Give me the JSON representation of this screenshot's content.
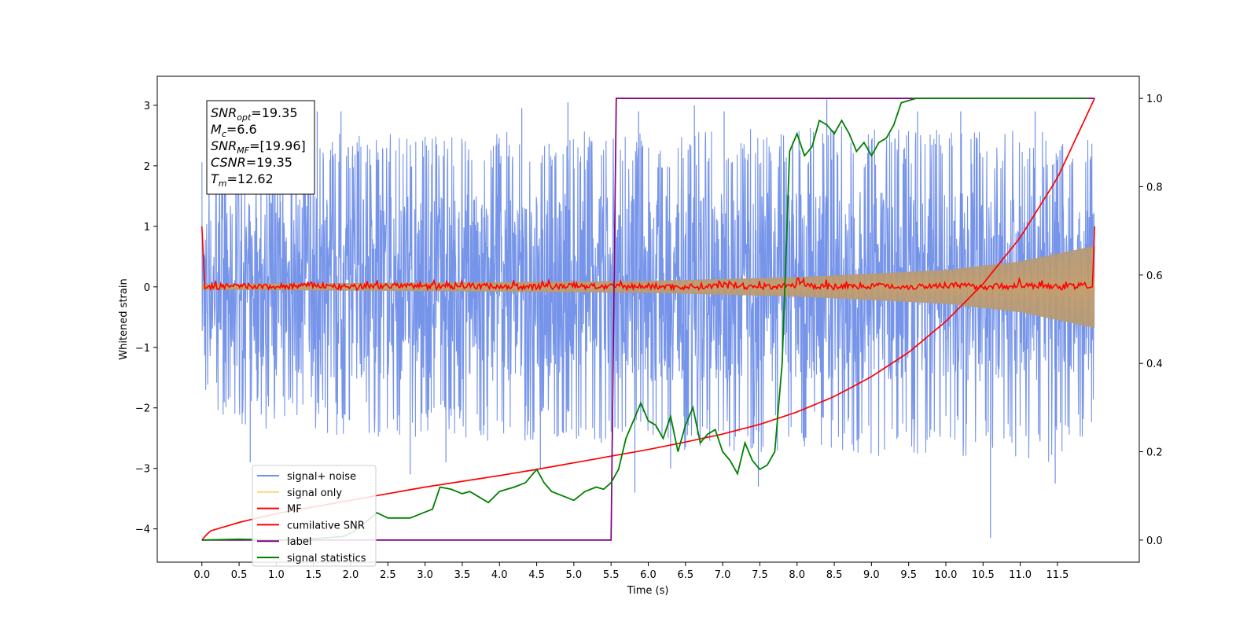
{
  "chart_data": {
    "type": "line",
    "xlabel": "Time (s)",
    "ylabel": "Whitened strain",
    "xlim": [
      -0.6,
      12.6
    ],
    "ylim": [
      -4.55,
      3.48
    ],
    "ylim_right": [
      -0.05,
      1.05
    ],
    "x_ticks": [
      0.0,
      0.5,
      1.0,
      1.5,
      2.0,
      2.5,
      3.0,
      3.5,
      4.0,
      4.5,
      5.0,
      5.5,
      6.0,
      6.5,
      7.0,
      7.5,
      8.0,
      8.5,
      9.0,
      9.5,
      10.0,
      10.5,
      11.0,
      11.5
    ],
    "x_tick_labels": [
      "0.0",
      "0.5",
      "1.0",
      "1.5",
      "2.0",
      "2.5",
      "3.0",
      "3.5",
      "4.0",
      "4.5",
      "5.0",
      "5.5",
      "6.0",
      "6.5",
      "7.0",
      "7.5",
      "8.0",
      "8.5",
      "9.0",
      "9.5",
      "10.0",
      "10.5",
      "11.0",
      "11.5"
    ],
    "y_ticks": [
      3,
      2,
      1,
      0,
      -1,
      -2,
      -3,
      -4
    ],
    "y_tick_labels": [
      "3",
      "2",
      "1",
      "0",
      "−1",
      "−2",
      "−3",
      "−4"
    ],
    "y_right_ticks": [
      1.0,
      0.8,
      0.6,
      0.4,
      0.2,
      0.0
    ],
    "y_right_tick_labels": [
      "1.0",
      "0.8",
      "0.6",
      "0.4",
      "0.2",
      "0.0"
    ],
    "series": [
      {
        "name": "signal+ noise",
        "color": "#6f8ee8",
        "axis": "left",
        "x_range": [
          0.0,
          12.0
        ],
        "envelope_high": [
          [
            0.0,
            2.1
          ],
          [
            0.5,
            2.3
          ],
          [
            1.0,
            2.5
          ],
          [
            1.5,
            2.5
          ],
          [
            2.0,
            2.6
          ],
          [
            2.5,
            2.6
          ],
          [
            3.0,
            2.5
          ],
          [
            3.5,
            2.6
          ],
          [
            4.0,
            2.6
          ],
          [
            4.5,
            2.6
          ],
          [
            5.0,
            2.6
          ],
          [
            5.5,
            2.5
          ],
          [
            6.0,
            2.6
          ],
          [
            6.5,
            2.6
          ],
          [
            7.0,
            2.7
          ],
          [
            7.5,
            2.6
          ],
          [
            8.0,
            2.6
          ],
          [
            8.5,
            2.7
          ],
          [
            9.0,
            2.6
          ],
          [
            9.5,
            2.6
          ],
          [
            10.0,
            2.6
          ],
          [
            10.5,
            2.6
          ],
          [
            11.0,
            2.6
          ],
          [
            11.5,
            2.6
          ],
          [
            12.0,
            2.4
          ]
        ],
        "envelope_low": [
          [
            0.0,
            -1.9
          ],
          [
            0.5,
            -2.3
          ],
          [
            1.0,
            -2.4
          ],
          [
            1.5,
            -2.4
          ],
          [
            2.0,
            -2.5
          ],
          [
            2.5,
            -2.5
          ],
          [
            3.0,
            -2.5
          ],
          [
            3.5,
            -2.5
          ],
          [
            4.0,
            -2.6
          ],
          [
            4.5,
            -2.6
          ],
          [
            5.0,
            -2.6
          ],
          [
            5.5,
            -2.6
          ],
          [
            6.0,
            -2.7
          ],
          [
            6.5,
            -2.7
          ],
          [
            7.0,
            -2.7
          ],
          [
            7.5,
            -2.8
          ],
          [
            8.0,
            -2.7
          ],
          [
            8.5,
            -2.7
          ],
          [
            9.0,
            -2.8
          ],
          [
            9.5,
            -2.8
          ],
          [
            10.0,
            -2.8
          ],
          [
            10.5,
            -2.8
          ],
          [
            11.0,
            -2.9
          ],
          [
            11.5,
            -2.9
          ],
          [
            12.0,
            -2.3
          ]
        ],
        "extreme_points": [
          [
            0.65,
            -2.9
          ],
          [
            2.8,
            -3.1
          ],
          [
            3.28,
            -2.9
          ],
          [
            4.55,
            -3.0
          ],
          [
            5.52,
            -2.55
          ],
          [
            5.82,
            -3.4
          ],
          [
            6.3,
            -3.0
          ],
          [
            7.48,
            -3.3
          ],
          [
            8.4,
            3.1
          ],
          [
            10.6,
            -4.15
          ],
          [
            11.47,
            -3.25
          ],
          [
            1.05,
            2.95
          ],
          [
            1.55,
            2.9
          ],
          [
            1.87,
            2.9
          ],
          [
            4.3,
            2.95
          ],
          [
            4.92,
            3.05
          ],
          [
            5.87,
            2.9
          ],
          [
            6.62,
            3.0
          ],
          [
            7.02,
            2.9
          ],
          [
            9.62,
            2.9
          ],
          [
            10.2,
            2.9
          ],
          [
            11.2,
            2.9
          ]
        ]
      },
      {
        "name": "signal only",
        "color": "#ffd27f",
        "axis": "left",
        "amplitude": [
          [
            0.0,
            0.05
          ],
          [
            3.0,
            0.07
          ],
          [
            6.0,
            0.1
          ],
          [
            8.0,
            0.16
          ],
          [
            10.0,
            0.28
          ],
          [
            11.0,
            0.42
          ],
          [
            11.7,
            0.6
          ],
          [
            12.0,
            0.68
          ]
        ]
      },
      {
        "name": "MF",
        "color": "#ff0000",
        "axis": "left",
        "x": [
          0.0,
          0.05,
          0.1,
          0.5,
          1.0,
          1.5,
          2.0,
          2.5,
          3.0,
          3.5,
          4.0,
          4.5,
          5.0,
          5.5,
          6.0,
          6.5,
          7.0,
          7.5,
          8.0,
          8.5,
          9.0,
          9.5,
          10.0,
          10.5,
          11.0,
          11.5,
          11.9,
          11.97,
          12.0
        ],
        "y": [
          1.0,
          -0.02,
          0.0,
          0.01,
          0.0,
          0.03,
          -0.01,
          0.02,
          0.0,
          0.02,
          0.01,
          0.0,
          0.02,
          0.0,
          0.01,
          0.0,
          0.02,
          0.0,
          0.03,
          0.0,
          0.02,
          0.0,
          0.03,
          0.0,
          0.02,
          0.0,
          0.02,
          0.0,
          1.0
        ]
      },
      {
        "name": "cumilative SNR",
        "color": "#ff0000",
        "axis": "right",
        "x": [
          0.0,
          0.1,
          0.5,
          1.0,
          1.5,
          2.0,
          2.5,
          3.0,
          3.5,
          4.0,
          4.5,
          5.0,
          5.5,
          6.0,
          6.5,
          7.0,
          7.5,
          8.0,
          8.5,
          9.0,
          9.5,
          10.0,
          10.5,
          11.0,
          11.5,
          12.0
        ],
        "y": [
          0.0,
          0.02,
          0.04,
          0.06,
          0.075,
          0.09,
          0.105,
          0.12,
          0.133,
          0.146,
          0.16,
          0.175,
          0.19,
          0.205,
          0.222,
          0.24,
          0.262,
          0.29,
          0.325,
          0.37,
          0.425,
          0.495,
          0.58,
          0.685,
          0.82,
          1.0
        ]
      },
      {
        "name": "label",
        "color": "#800080",
        "axis": "right",
        "x": [
          0.0,
          5.5,
          5.57,
          12.0
        ],
        "y": [
          0.0,
          0.0,
          1.0,
          1.0
        ]
      },
      {
        "name": "signal statistics",
        "color": "#008000",
        "axis": "right",
        "x": [
          0.0,
          0.5,
          1.0,
          1.5,
          1.9,
          2.05,
          2.2,
          2.35,
          2.5,
          2.65,
          2.8,
          2.95,
          3.1,
          3.2,
          3.35,
          3.5,
          3.6,
          3.7,
          3.85,
          4.0,
          4.1,
          4.2,
          4.35,
          4.5,
          4.6,
          4.7,
          4.85,
          5.0,
          5.15,
          5.3,
          5.4,
          5.5,
          5.6,
          5.7,
          5.8,
          5.9,
          6.0,
          6.1,
          6.2,
          6.3,
          6.4,
          6.5,
          6.6,
          6.7,
          6.8,
          6.9,
          7.0,
          7.1,
          7.2,
          7.3,
          7.4,
          7.5,
          7.6,
          7.7,
          7.8,
          7.9,
          8.0,
          8.1,
          8.2,
          8.3,
          8.4,
          8.5,
          8.6,
          8.7,
          8.8,
          8.9,
          9.0,
          9.1,
          9.2,
          9.3,
          9.4,
          9.5,
          9.6,
          9.8,
          10.0,
          10.5,
          11.0,
          11.5,
          11.9
        ],
        "y": [
          0.0,
          0.002,
          0.0,
          0.003,
          0.008,
          0.02,
          0.04,
          0.062,
          0.05,
          0.05,
          0.05,
          0.06,
          0.07,
          0.12,
          0.115,
          0.105,
          0.11,
          0.1,
          0.085,
          0.11,
          0.115,
          0.12,
          0.13,
          0.16,
          0.13,
          0.11,
          0.1,
          0.09,
          0.11,
          0.12,
          0.115,
          0.13,
          0.16,
          0.23,
          0.27,
          0.31,
          0.27,
          0.26,
          0.23,
          0.28,
          0.2,
          0.26,
          0.3,
          0.22,
          0.24,
          0.25,
          0.2,
          0.18,
          0.15,
          0.22,
          0.18,
          0.16,
          0.17,
          0.2,
          0.4,
          0.88,
          0.92,
          0.87,
          0.89,
          0.95,
          0.94,
          0.92,
          0.95,
          0.92,
          0.88,
          0.9,
          0.87,
          0.9,
          0.91,
          0.94,
          0.99,
          0.995,
          1.0,
          1.0,
          1.0,
          1.0,
          1.0,
          1.0,
          1.0
        ]
      }
    ],
    "legend": {
      "placement": "lower-left",
      "entries": [
        {
          "label": "signal+ noise",
          "color": "#6f8ee8"
        },
        {
          "label": "signal only",
          "color": "#ffd27f"
        },
        {
          "label": "MF",
          "color": "#ff0000"
        },
        {
          "label": "cumilative SNR",
          "color": "#ff0000"
        },
        {
          "label": "label",
          "color": "#800080"
        },
        {
          "label": "signal statistics",
          "color": "#008000"
        }
      ]
    },
    "stats_box": {
      "placement": "top-left",
      "lines": [
        {
          "sym": "SNR",
          "sub": "opt",
          "value": "=19.35"
        },
        {
          "sym": "M",
          "sub": "c",
          "value": "=6.6"
        },
        {
          "sym": "SNR",
          "sub": "MF",
          "value": "=[19.96]"
        },
        {
          "sym": "CSNR",
          "sub": "",
          "value": "=19.35"
        },
        {
          "sym": "T",
          "sub": "m",
          "value": "=12.62"
        }
      ]
    },
    "grid": false
  }
}
